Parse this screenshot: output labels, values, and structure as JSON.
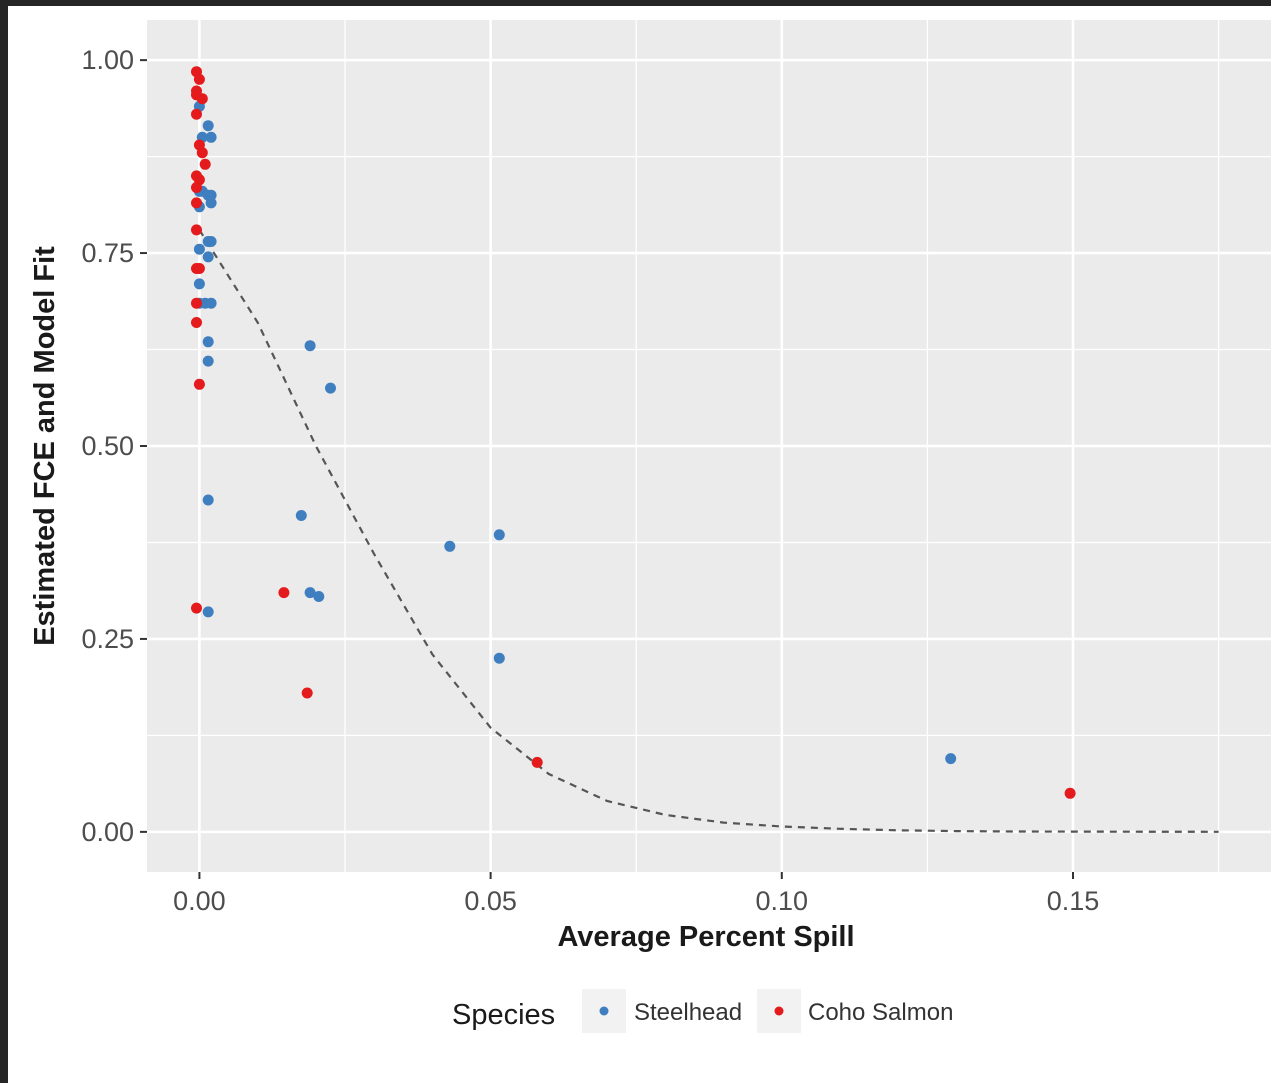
{
  "chart_data": {
    "type": "scatter",
    "xlabel": "Average Percent Spill",
    "ylabel": "Estimated FCE and Model Fit",
    "xlim": [
      -0.009,
      0.184
    ],
    "ylim": [
      -0.052,
      1.052
    ],
    "x_ticks": [
      0.0,
      0.05,
      0.1,
      0.15
    ],
    "x_tick_labels": [
      "0.00",
      "0.05",
      "0.10",
      "0.15"
    ],
    "y_ticks": [
      0.0,
      0.25,
      0.5,
      0.75,
      1.0
    ],
    "y_tick_labels": [
      "0.00",
      "0.25",
      "0.50",
      "0.75",
      "1.00"
    ],
    "grid": true,
    "legend": {
      "title": "Species",
      "position": "bottom"
    },
    "colors": {
      "Steelhead": "#3f7fc0",
      "Coho Salmon": "#e41a1c",
      "fit_line": "#555555",
      "panel": "#ebebeb",
      "grid": "#ffffff"
    },
    "series": [
      {
        "name": "Steelhead",
        "x": [
          0.0,
          0.0005,
          0.0015,
          0.002,
          0.0,
          0.0005,
          0.0015,
          0.002,
          0.002,
          0.0,
          0.0015,
          0.002,
          0.0,
          0.0015,
          0.0,
          0.0,
          0.001,
          0.002,
          0.0015,
          0.0015,
          0.019,
          0.0225,
          0.0015,
          0.0175,
          0.019,
          0.0205,
          0.0015,
          0.043,
          0.0515,
          0.0515,
          0.129
        ],
        "y": [
          0.94,
          0.9,
          0.915,
          0.9,
          0.83,
          0.83,
          0.825,
          0.815,
          0.825,
          0.81,
          0.765,
          0.765,
          0.755,
          0.745,
          0.71,
          0.685,
          0.685,
          0.685,
          0.635,
          0.61,
          0.63,
          0.575,
          0.43,
          0.41,
          0.31,
          0.305,
          0.285,
          0.37,
          0.385,
          0.225,
          0.095
        ]
      },
      {
        "name": "Coho Salmon",
        "x": [
          -0.0005,
          0.0,
          -0.0005,
          0.0005,
          -0.0005,
          -0.0005,
          0.0,
          0.0005,
          0.001,
          -0.0005,
          0.0,
          -0.0005,
          -0.0005,
          -0.0005,
          0.0,
          -0.0005,
          -0.0005,
          -0.0005,
          0.0,
          -0.0005,
          0.0145,
          0.0185,
          0.058,
          0.1495
        ],
        "y": [
          0.985,
          0.975,
          0.96,
          0.95,
          0.955,
          0.93,
          0.89,
          0.88,
          0.865,
          0.85,
          0.845,
          0.835,
          0.815,
          0.78,
          0.73,
          0.73,
          0.685,
          0.66,
          0.58,
          0.29,
          0.31,
          0.18,
          0.09,
          0.05
        ]
      }
    ],
    "fit_line": {
      "style": "dashed",
      "x": [
        0.0,
        0.01,
        0.02,
        0.03,
        0.04,
        0.05,
        0.06,
        0.07,
        0.08,
        0.09,
        0.1,
        0.11,
        0.12,
        0.13,
        0.14,
        0.15,
        0.16,
        0.175
      ],
      "y": [
        0.78,
        0.66,
        0.5,
        0.36,
        0.23,
        0.135,
        0.075,
        0.04,
        0.022,
        0.012,
        0.007,
        0.004,
        0.002,
        0.001,
        0.0005,
        0.0003,
        0.0002,
        0.0001
      ]
    }
  }
}
